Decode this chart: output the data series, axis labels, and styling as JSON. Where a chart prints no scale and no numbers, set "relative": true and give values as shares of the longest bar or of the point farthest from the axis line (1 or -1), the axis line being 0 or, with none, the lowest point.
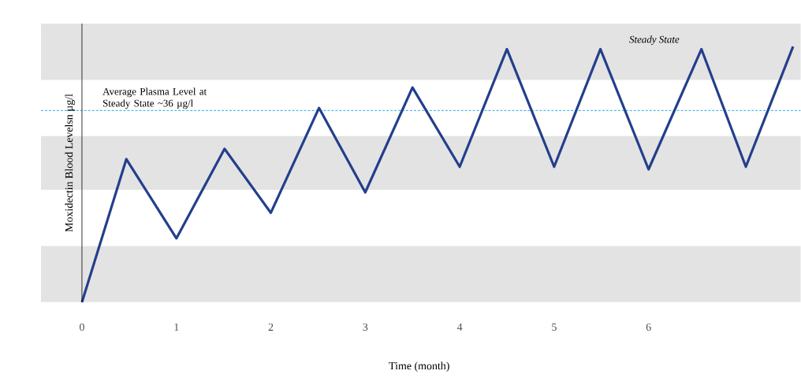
{
  "chart_data": {
    "type": "line",
    "relative": true,
    "xlabel": "Time (month)",
    "ylabel": "Moxidectin Blood Levelsn µg/l",
    "x": [
      0,
      0.47,
      1,
      1.51,
      2,
      2.51,
      3,
      3.5,
      4,
      4.5,
      5,
      5.49,
      6,
      6.56,
      7.03,
      7.53
    ],
    "series": [
      {
        "color": "#233f8c",
        "values": [
          0,
          0.56,
          0.25,
          0.6,
          0.35,
          0.76,
          0.43,
          0.84,
          0.53,
          0.99,
          0.53,
          0.99,
          0.52,
          0.99,
          0.53,
          1.0
        ]
      }
    ],
    "xlim": [
      0,
      7.61
    ],
    "xticks": [
      0,
      1,
      2,
      3,
      4,
      5,
      6
    ],
    "ref_lines": [
      {
        "axis": "y",
        "value": 0.75,
        "label": "Average Plasma Level at Steady State ~36 µg/l",
        "color": "#2aa8e0",
        "line_style": "dashed"
      }
    ],
    "bands": [
      {
        "axis": "y",
        "from": 0,
        "to": 0.22,
        "color": "#e3e3e3"
      },
      {
        "axis": "y",
        "from": 0.44,
        "to": 0.65,
        "color": "#e3e3e3"
      },
      {
        "axis": "y",
        "from": 0.87,
        "to": 1.09,
        "color": "#e3e3e3"
      }
    ],
    "annotations": [
      "*Steady State*"
    ],
    "grid": false,
    "marker": "none",
    "line_style": "solid"
  }
}
